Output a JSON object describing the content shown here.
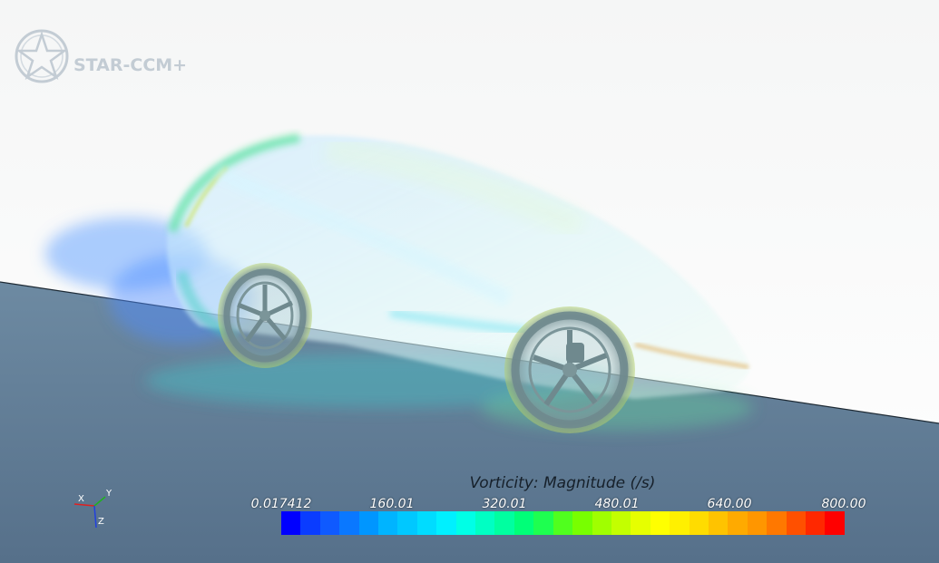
{
  "app": {
    "logo_text": "STAR-CCM+",
    "logo_icon": "star-ccm-logo-icon"
  },
  "scene": {
    "description_icon": "car-vorticity-render",
    "background_top": "#f5f6f6",
    "ground_color": "#5a7690"
  },
  "legend": {
    "title": "Vorticity: Magnitude (/s)",
    "ticks": [
      "0.017412",
      "160.01",
      "320.01",
      "480.01",
      "640.00",
      "800.00"
    ],
    "min": 0.017412,
    "max": 800.0,
    "colors": [
      "#0000ff",
      "#0a3cff",
      "#0f5aff",
      "#0a78ff",
      "#0096ff",
      "#00b4ff",
      "#00c8ff",
      "#00dcff",
      "#00f0ff",
      "#00ffe6",
      "#00ffc3",
      "#00ffa0",
      "#00ff78",
      "#1eff50",
      "#50ff1e",
      "#78ff00",
      "#a0ff00",
      "#c3ff00",
      "#e6ff00",
      "#ffff00",
      "#fff000",
      "#ffdc00",
      "#ffc300",
      "#ffaa00",
      "#ff9600",
      "#ff7800",
      "#ff5000",
      "#ff2800",
      "#ff0000"
    ]
  },
  "axes": {
    "x_label": "X",
    "y_label": "Y",
    "z_label": "Z",
    "x_color": "#e02020",
    "y_color": "#20b020",
    "z_color": "#2040e0"
  }
}
